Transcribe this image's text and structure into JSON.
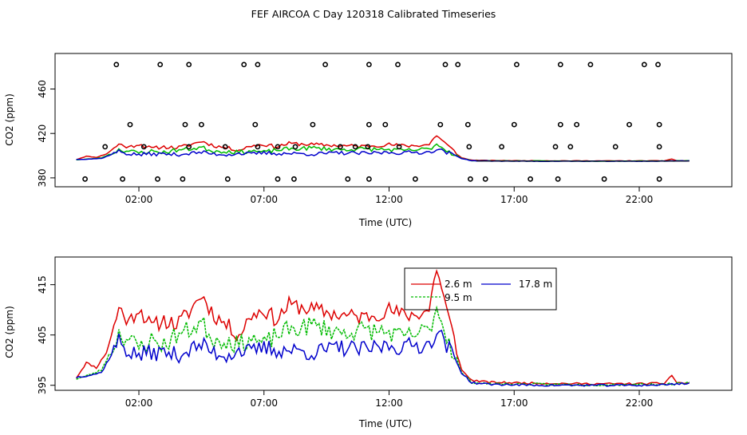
{
  "page_title": "FEF AIRCOA C  Day 120318  Calibrated Timeseries",
  "colors": {
    "series_2_6": "#dd0000",
    "series_9_5": "#00bb00",
    "series_17_8": "#0000cc",
    "markers": "#000000"
  },
  "chart_data": [
    {
      "type": "scatter+line",
      "title": "",
      "xlabel": "Time (UTC)",
      "ylabel": "CO2 (ppm)",
      "xlim": [
        -1.35,
        25.7
      ],
      "ylim": [
        372,
        492
      ],
      "xticks": [
        2,
        7,
        12,
        17,
        22
      ],
      "xtick_labels": [
        "02:00",
        "07:00",
        "12:00",
        "17:00",
        "22:00"
      ],
      "yticks": [
        380,
        420,
        460
      ],
      "ytick_labels": [
        "380",
        "420",
        "460"
      ],
      "marker_rows": [
        {
          "label": "top",
          "y": 482,
          "x": [
            1.1,
            2.85,
            4.0,
            6.2,
            6.75,
            9.45,
            11.2,
            12.35,
            14.25,
            14.75,
            17.1,
            18.85,
            20.05,
            22.2,
            22.75
          ]
        },
        {
          "label": "upper-mid",
          "y": 428,
          "x": [
            1.65,
            3.85,
            4.5,
            6.65,
            8.95,
            11.2,
            11.85,
            14.05,
            15.15,
            17.0,
            18.85,
            19.5,
            21.6,
            22.8
          ]
        },
        {
          "label": "mid",
          "y": 408,
          "x": [
            0.65,
            2.2,
            4.0,
            5.45,
            6.75,
            7.55,
            8.25,
            10.05,
            10.65,
            11.15,
            12.4,
            15.2,
            16.5,
            18.65,
            19.25,
            21.05,
            22.8
          ]
        },
        {
          "label": "bottom",
          "y": 379,
          "x": [
            -0.15,
            1.35,
            2.75,
            3.75,
            5.55,
            7.55,
            8.2,
            10.35,
            11.2,
            13.05,
            15.25,
            15.85,
            17.65,
            18.75,
            20.6,
            22.8
          ]
        }
      ],
      "series": [
        {
          "name": "2.6 m",
          "color": "#dd0000"
        },
        {
          "name": "9.5 m",
          "color": "#00bb00"
        },
        {
          "name": "17.8 m",
          "color": "#0000cc"
        }
      ]
    },
    {
      "type": "line",
      "title": "",
      "xlabel": "Time (UTC)",
      "ylabel": "CO2 (ppm)",
      "xlim": [
        -1.35,
        25.7
      ],
      "ylim": [
        394,
        420.5
      ],
      "xticks": [
        2,
        7,
        12,
        17,
        22
      ],
      "xtick_labels": [
        "02:00",
        "07:00",
        "12:00",
        "17:00",
        "22:00"
      ],
      "yticks": [
        395,
        405,
        415
      ],
      "ytick_labels": [
        "395",
        "405",
        "415"
      ],
      "legend": {
        "placement": "top-right",
        "entries": [
          {
            "name": "2.6 m",
            "color": "#dd0000"
          },
          {
            "name": "17.8 m",
            "color": "#0000cc"
          },
          {
            "name": "9.5 m",
            "color": "#00bb00"
          }
        ]
      },
      "series": [
        {
          "name": "2.6 m",
          "color": "#dd0000",
          "knots": [
            [
              -0.5,
              396.5
            ],
            [
              -0.1,
              399.5
            ],
            [
              0.3,
              398.5
            ],
            [
              0.7,
              401.5
            ],
            [
              1.0,
              406.5
            ],
            [
              1.2,
              410.5
            ],
            [
              1.6,
              407.5
            ],
            [
              2.0,
              410.5
            ],
            [
              2.5,
              406.5
            ],
            [
              3.0,
              408.0
            ],
            [
              3.5,
              407.0
            ],
            [
              4.0,
              409.5
            ],
            [
              4.5,
              413.0
            ],
            [
              5.0,
              409.0
            ],
            [
              5.5,
              407.0
            ],
            [
              6.0,
              405.0
            ],
            [
              6.5,
              409.0
            ],
            [
              7.0,
              410.0
            ],
            [
              7.5,
              408.0
            ],
            [
              8.0,
              411.0
            ],
            [
              9.0,
              410.0
            ],
            [
              10.0,
              409.0
            ],
            [
              11.0,
              408.5
            ],
            [
              12.0,
              410.0
            ],
            [
              12.5,
              409.0
            ],
            [
              13.0,
              409.0
            ],
            [
              13.6,
              410.0
            ],
            [
              13.9,
              418.5
            ],
            [
              14.3,
              410.0
            ],
            [
              14.6,
              404.0
            ],
            [
              14.9,
              398.0
            ],
            [
              15.3,
              396.0
            ],
            [
              16.0,
              395.6
            ],
            [
              18.0,
              395.4
            ],
            [
              20.0,
              395.3
            ],
            [
              22.0,
              395.3
            ],
            [
              23.0,
              395.4
            ],
            [
              23.3,
              397.0
            ],
            [
              23.5,
              395.5
            ],
            [
              24.0,
              395.4
            ]
          ]
        },
        {
          "name": "9.5 m",
          "color": "#00bb00",
          "knots": [
            [
              -0.5,
              396.3
            ],
            [
              0.0,
              397.0
            ],
            [
              0.5,
              398.0
            ],
            [
              1.0,
              403.0
            ],
            [
              1.2,
              405.5
            ],
            [
              1.6,
              404.0
            ],
            [
              2.0,
              402.5
            ],
            [
              2.5,
              404.0
            ],
            [
              3.0,
              403.0
            ],
            [
              3.5,
              405.0
            ],
            [
              4.0,
              406.0
            ],
            [
              4.5,
              407.5
            ],
            [
              5.0,
              404.0
            ],
            [
              5.5,
              404.0
            ],
            [
              6.0,
              403.0
            ],
            [
              6.5,
              404.5
            ],
            [
              7.0,
              403.0
            ],
            [
              7.5,
              405.0
            ],
            [
              8.0,
              406.0
            ],
            [
              9.0,
              407.0
            ],
            [
              10.0,
              405.5
            ],
            [
              11.0,
              406.0
            ],
            [
              12.0,
              405.5
            ],
            [
              12.5,
              404.5
            ],
            [
              13.0,
              405.0
            ],
            [
              13.6,
              406.0
            ],
            [
              13.9,
              410.5
            ],
            [
              14.3,
              405.0
            ],
            [
              14.6,
              401.0
            ],
            [
              14.9,
              397.5
            ],
            [
              15.3,
              395.6
            ],
            [
              16.0,
              395.3
            ],
            [
              18.0,
              395.2
            ],
            [
              20.0,
              395.1
            ],
            [
              22.0,
              395.2
            ],
            [
              23.0,
              395.2
            ],
            [
              23.5,
              395.3
            ],
            [
              24.0,
              395.4
            ]
          ]
        },
        {
          "name": "17.8 m",
          "color": "#0000cc",
          "knots": [
            [
              -0.5,
              396.6
            ],
            [
              0.0,
              397.0
            ],
            [
              0.5,
              397.5
            ],
            [
              1.0,
              402.0
            ],
            [
              1.2,
              404.0
            ],
            [
              1.6,
              401.5
            ],
            [
              2.0,
              401.0
            ],
            [
              2.5,
              401.5
            ],
            [
              3.0,
              401.5
            ],
            [
              3.5,
              401.0
            ],
            [
              4.0,
              402.0
            ],
            [
              4.5,
              403.0
            ],
            [
              5.0,
              401.5
            ],
            [
              5.5,
              401.0
            ],
            [
              6.0,
              402.0
            ],
            [
              6.5,
              401.5
            ],
            [
              7.0,
              402.5
            ],
            [
              7.5,
              402.0
            ],
            [
              8.0,
              402.0
            ],
            [
              9.0,
              401.5
            ],
            [
              10.0,
              402.5
            ],
            [
              11.0,
              402.0
            ],
            [
              12.0,
              403.0
            ],
            [
              12.5,
              402.5
            ],
            [
              13.0,
              403.0
            ],
            [
              13.6,
              403.0
            ],
            [
              13.9,
              406.0
            ],
            [
              14.3,
              403.0
            ],
            [
              14.6,
              400.5
            ],
            [
              14.9,
              397.5
            ],
            [
              15.3,
              395.5
            ],
            [
              16.0,
              395.2
            ],
            [
              18.0,
              395.0
            ],
            [
              20.0,
              395.0
            ],
            [
              22.0,
              395.0
            ],
            [
              23.0,
              395.1
            ],
            [
              23.5,
              395.3
            ],
            [
              24.0,
              395.4
            ]
          ]
        }
      ]
    }
  ]
}
